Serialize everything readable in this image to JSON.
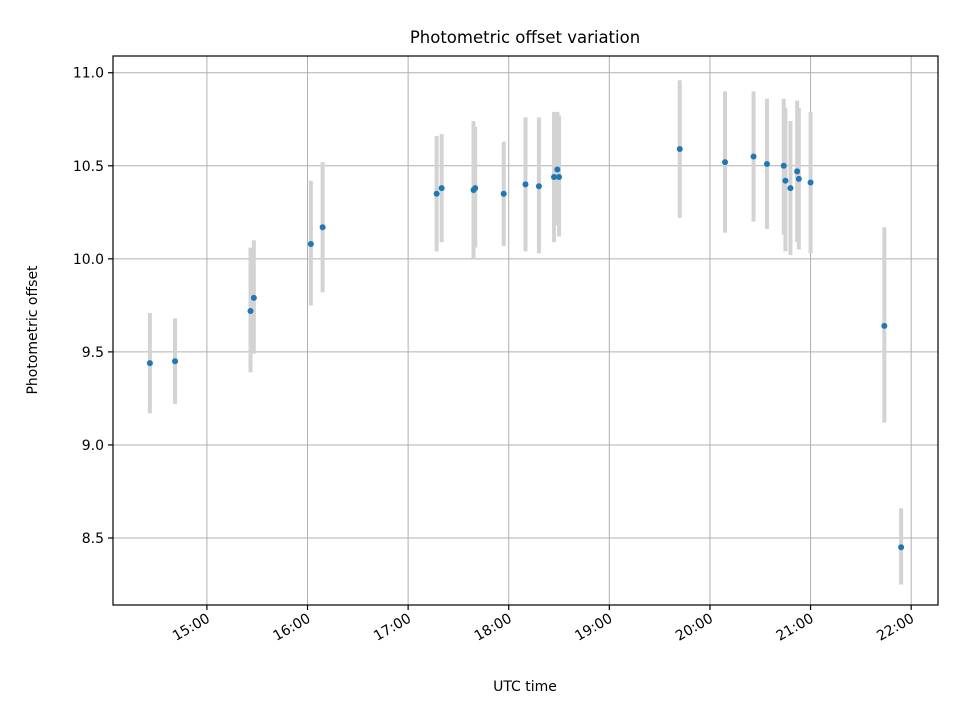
{
  "chart_data": {
    "type": "scatter",
    "title": "Photometric offset variation",
    "xlabel": "UTC time",
    "ylabel": "Photometric offset",
    "xlim": [
      "14:04",
      "22:16"
    ],
    "ylim": [
      8.14,
      11.09
    ],
    "x_ticks": [
      "15:00",
      "16:00",
      "17:00",
      "18:00",
      "19:00",
      "20:00",
      "21:00",
      "22:00"
    ],
    "y_ticks": [
      "8.5",
      "9.0",
      "9.5",
      "10.0",
      "10.5",
      "11.0"
    ],
    "grid": true,
    "error_bar_color": "#d3d3d3",
    "marker_color": "#1f77b4",
    "points": [
      {
        "t": "14:26",
        "y": 9.44,
        "lo": 9.17,
        "hi": 9.71
      },
      {
        "t": "14:41",
        "y": 9.45,
        "lo": 9.22,
        "hi": 9.68
      },
      {
        "t": "15:26",
        "y": 9.72,
        "lo": 9.39,
        "hi": 10.06
      },
      {
        "t": "15:28",
        "y": 9.79,
        "lo": 9.49,
        "hi": 10.1
      },
      {
        "t": "16:02",
        "y": 10.08,
        "lo": 9.75,
        "hi": 10.42
      },
      {
        "t": "16:09",
        "y": 10.17,
        "lo": 9.82,
        "hi": 10.52
      },
      {
        "t": "17:17",
        "y": 10.35,
        "lo": 10.04,
        "hi": 10.66
      },
      {
        "t": "17:20",
        "y": 10.38,
        "lo": 10.09,
        "hi": 10.67
      },
      {
        "t": "17:39",
        "y": 10.37,
        "lo": 10.0,
        "hi": 10.74
      },
      {
        "t": "17:40",
        "y": 10.38,
        "lo": 10.06,
        "hi": 10.71
      },
      {
        "t": "17:57",
        "y": 10.35,
        "lo": 10.07,
        "hi": 10.63
      },
      {
        "t": "18:10",
        "y": 10.4,
        "lo": 10.04,
        "hi": 10.76
      },
      {
        "t": "18:18",
        "y": 10.39,
        "lo": 10.03,
        "hi": 10.76
      },
      {
        "t": "18:27",
        "y": 10.44,
        "lo": 10.09,
        "hi": 10.79
      },
      {
        "t": "18:29",
        "y": 10.48,
        "lo": 10.18,
        "hi": 10.79
      },
      {
        "t": "18:30",
        "y": 10.44,
        "lo": 10.12,
        "hi": 10.77
      },
      {
        "t": "19:42",
        "y": 10.59,
        "lo": 10.22,
        "hi": 10.96
      },
      {
        "t": "20:09",
        "y": 10.52,
        "lo": 10.14,
        "hi": 10.9
      },
      {
        "t": "20:26",
        "y": 10.55,
        "lo": 10.2,
        "hi": 10.9
      },
      {
        "t": "20:34",
        "y": 10.51,
        "lo": 10.16,
        "hi": 10.86
      },
      {
        "t": "20:44",
        "y": 10.5,
        "lo": 10.13,
        "hi": 10.86
      },
      {
        "t": "20:45",
        "y": 10.42,
        "lo": 10.04,
        "hi": 10.81
      },
      {
        "t": "20:48",
        "y": 10.38,
        "lo": 10.02,
        "hi": 10.74
      },
      {
        "t": "20:52",
        "y": 10.47,
        "lo": 10.09,
        "hi": 10.85
      },
      {
        "t": "20:53",
        "y": 10.43,
        "lo": 10.05,
        "hi": 10.81
      },
      {
        "t": "21:00",
        "y": 10.41,
        "lo": 10.03,
        "hi": 10.79
      },
      {
        "t": "21:44",
        "y": 9.64,
        "lo": 9.12,
        "hi": 10.17
      },
      {
        "t": "21:54",
        "y": 8.45,
        "lo": 8.25,
        "hi": 8.66
      }
    ]
  }
}
